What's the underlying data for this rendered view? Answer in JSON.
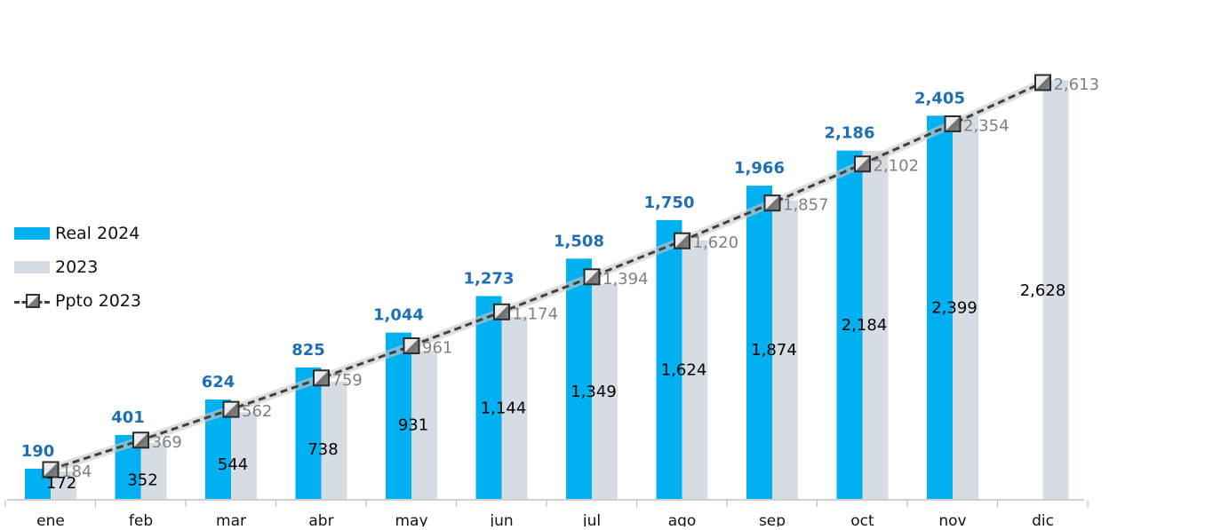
{
  "chart_data": {
    "type": "bar",
    "title": "",
    "xlabel": "",
    "ylabel": "",
    "ylim": [
      0,
      2800
    ],
    "grid": false,
    "legend_position": "left",
    "categories": [
      "ene",
      "feb",
      "mar",
      "abr",
      "may",
      "jun",
      "jul",
      "ago",
      "sep",
      "oct",
      "nov",
      "dic"
    ],
    "series": [
      {
        "name": "Real 2024",
        "kind": "bar",
        "color": "#00B0F0",
        "label_color": "#1F6FB5",
        "values": [
          190,
          401,
          624,
          825,
          1044,
          1273,
          1508,
          1750,
          1966,
          2186,
          2405,
          null
        ],
        "labels": [
          "190",
          "401",
          "624",
          "825",
          "1,044",
          "1,273",
          "1,508",
          "1,750",
          "1,966",
          "2,186",
          "2,405",
          ""
        ]
      },
      {
        "name": "2023",
        "kind": "bar",
        "color": "#D6DCE4",
        "label_color": "#000000",
        "values": [
          172,
          352,
          544,
          738,
          931,
          1144,
          1349,
          1624,
          1874,
          2184,
          2399,
          2628
        ],
        "labels": [
          "172",
          "352",
          "544",
          "738",
          "931",
          "1,144",
          "1,349",
          "1,624",
          "1,874",
          "2,184",
          "2,399",
          "2,628"
        ]
      },
      {
        "name": "Ppto 2023",
        "kind": "line",
        "color": "#404040",
        "label_color": "#808080",
        "values": [
          184,
          369,
          562,
          759,
          961,
          1174,
          1394,
          1620,
          1857,
          2102,
          2354,
          2613
        ],
        "labels": [
          "184",
          "369",
          "562",
          "759",
          "961",
          "1,174",
          "1,394",
          "1,620",
          "1,857",
          "2,102",
          "2,354",
          "2,613"
        ]
      }
    ]
  }
}
